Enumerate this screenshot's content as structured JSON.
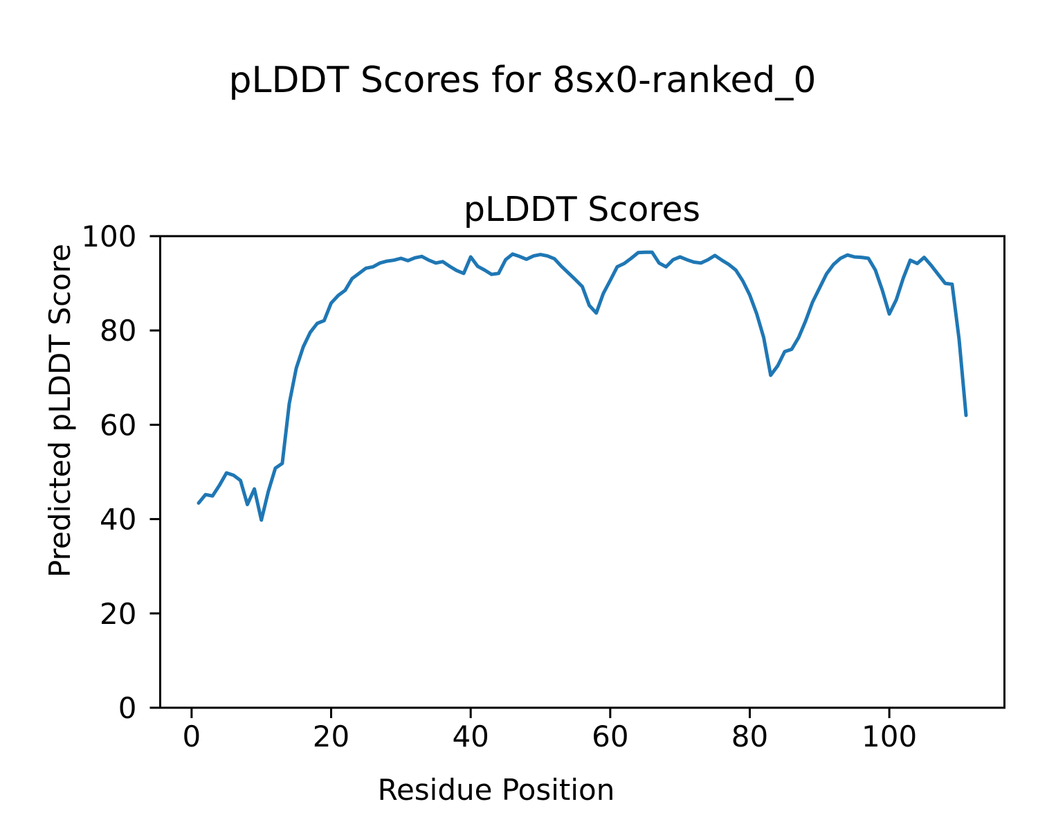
{
  "figure": {
    "suptitle": "pLDDT Scores for 8sx0-ranked_0",
    "background_color": "#ffffff",
    "text_color": "#000000"
  },
  "chart_data": {
    "type": "line",
    "title": "pLDDT Scores",
    "xlabel": "Residue Position",
    "ylabel": "Predicted pLDDT Score",
    "xlim": [
      -4.5,
      116.5
    ],
    "ylim": [
      0,
      100
    ],
    "x_tick_values": [
      0,
      20,
      40,
      60,
      80,
      100
    ],
    "x_tick_labels": [
      "0",
      "20",
      "40",
      "60",
      "80",
      "100"
    ],
    "y_tick_values": [
      0,
      20,
      40,
      60,
      80,
      100
    ],
    "y_tick_labels": [
      "0",
      "20",
      "40",
      "60",
      "80",
      "100"
    ],
    "grid": false,
    "legend": null,
    "line_color": "#1f77b4",
    "line_width": 5,
    "spine_color": "#000000",
    "series": [
      {
        "name": "pLDDT",
        "x": [
          1,
          2,
          3,
          4,
          5,
          6,
          7,
          8,
          9,
          10,
          11,
          12,
          13,
          14,
          15,
          16,
          17,
          18,
          19,
          20,
          21,
          22,
          23,
          24,
          25,
          26,
          27,
          28,
          29,
          30,
          31,
          32,
          33,
          34,
          35,
          36,
          37,
          38,
          39,
          40,
          41,
          42,
          43,
          44,
          45,
          46,
          47,
          48,
          49,
          50,
          51,
          52,
          53,
          54,
          55,
          56,
          57,
          58,
          59,
          60,
          61,
          62,
          63,
          64,
          65,
          66,
          67,
          68,
          69,
          70,
          71,
          72,
          73,
          74,
          75,
          76,
          77,
          78,
          79,
          80,
          81,
          82,
          83,
          84,
          85,
          86,
          87,
          88,
          89,
          90,
          91,
          92,
          93,
          94,
          95,
          96,
          97,
          98,
          99,
          100,
          101,
          102,
          103,
          104,
          105,
          106,
          107,
          108,
          109,
          110,
          111
        ],
        "y": [
          43.4,
          45.2,
          44.9,
          47.2,
          49.8,
          49.3,
          48.2,
          43.1,
          46.4,
          39.8,
          45.9,
          50.8,
          51.8,
          64.5,
          72.0,
          76.5,
          79.6,
          81.5,
          82.1,
          85.8,
          87.4,
          88.5,
          91.0,
          92.1,
          93.2,
          93.5,
          94.3,
          94.7,
          94.9,
          95.3,
          94.8,
          95.4,
          95.7,
          94.9,
          94.3,
          94.6,
          93.6,
          92.7,
          92.1,
          95.6,
          93.6,
          92.8,
          91.9,
          92.1,
          95.0,
          96.2,
          95.7,
          95.1,
          95.8,
          96.1,
          95.8,
          95.2,
          93.6,
          92.2,
          90.8,
          89.3,
          85.3,
          83.7,
          87.8,
          90.6,
          93.5,
          94.2,
          95.3,
          96.5,
          96.6,
          96.6,
          94.3,
          93.5,
          95.0,
          95.6,
          95.0,
          94.5,
          94.3,
          95.0,
          95.9,
          94.9,
          94.0,
          92.8,
          90.5,
          87.5,
          83.5,
          78.5,
          70.5,
          72.5,
          75.5,
          76.0,
          78.5,
          82.0,
          86.0,
          89.0,
          92.0,
          94.0,
          95.3,
          96.0,
          95.6,
          95.5,
          95.3,
          92.8,
          88.5,
          83.5,
          86.5,
          91.1,
          94.9,
          94.2,
          95.5,
          93.8,
          91.9,
          90.0,
          89.8,
          78.1,
          62.0
        ]
      }
    ]
  }
}
